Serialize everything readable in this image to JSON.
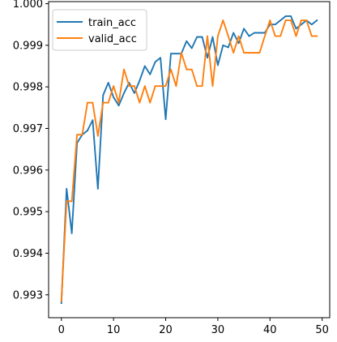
{
  "chart_data": {
    "type": "line",
    "title": "",
    "xlabel": "",
    "ylabel": "",
    "xlim": [
      -2.45,
      51.45
    ],
    "ylim": [
      0.99245,
      1.00005
    ],
    "xticks": [
      0,
      10,
      20,
      30,
      40,
      50
    ],
    "yticks": [
      0.993,
      0.994,
      0.995,
      0.996,
      0.997,
      0.998,
      0.999,
      1.0
    ],
    "xtick_labels": [
      "0",
      "10",
      "20",
      "30",
      "40",
      "50"
    ],
    "ytick_labels": [
      "0.993",
      "0.994",
      "0.995",
      "0.996",
      "0.997",
      "0.998",
      "0.999",
      "1.000"
    ],
    "grid": false,
    "legend_position": "top-left",
    "x": [
      0,
      1,
      2,
      3,
      4,
      5,
      6,
      7,
      8,
      9,
      10,
      11,
      12,
      13,
      14,
      15,
      16,
      17,
      18,
      19,
      20,
      21,
      22,
      23,
      24,
      25,
      26,
      27,
      28,
      29,
      30,
      31,
      32,
      33,
      34,
      35,
      36,
      37,
      38,
      39,
      40,
      41,
      42,
      43,
      44,
      45,
      46,
      47,
      48,
      49
    ],
    "series": [
      {
        "name": "train_acc",
        "color": "#1f77b4",
        "values": [
          0.9928,
          0.99555,
          0.99448,
          0.99665,
          0.99685,
          0.99695,
          0.9972,
          0.99555,
          0.9978,
          0.9981,
          0.99775,
          0.99755,
          0.99785,
          0.9981,
          0.99785,
          0.99815,
          0.9985,
          0.9983,
          0.9986,
          0.9987,
          0.99722,
          0.9988,
          0.9988,
          0.9988,
          0.9991,
          0.99893,
          0.9992,
          0.9992,
          0.9987,
          0.9992,
          0.99852,
          0.999,
          0.99895,
          0.9993,
          0.99905,
          0.9994,
          0.99922,
          0.9993,
          0.9993,
          0.9993,
          0.9995,
          0.9995,
          0.9996,
          0.9997,
          0.9997,
          0.9994,
          0.9995,
          0.9996,
          0.9995,
          0.9996
        ]
      },
      {
        "name": "valid_acc",
        "color": "#ff7f0e",
        "values": [
          0.99285,
          0.99525,
          0.99525,
          0.99685,
          0.99685,
          0.99762,
          0.99762,
          0.99682,
          0.99762,
          0.99762,
          0.99802,
          0.99762,
          0.99842,
          0.99802,
          0.99802,
          0.99762,
          0.99802,
          0.99762,
          0.99802,
          0.99802,
          0.99802,
          0.99842,
          0.99802,
          0.99882,
          0.99842,
          0.99842,
          0.99802,
          0.99802,
          0.99922,
          0.99802,
          0.99922,
          0.9996,
          0.99922,
          0.99882,
          0.99922,
          0.99882,
          0.99882,
          0.99882,
          0.99882,
          0.99922,
          0.9996,
          0.99922,
          0.99922,
          0.9996,
          0.9996,
          0.99922,
          0.9996,
          0.9996,
          0.99922,
          0.99922
        ]
      }
    ]
  }
}
